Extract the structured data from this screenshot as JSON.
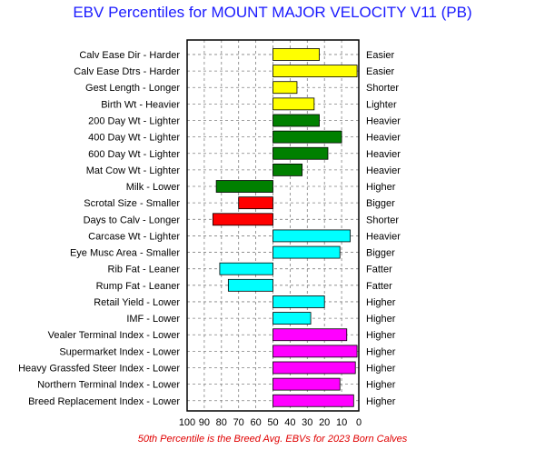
{
  "chart_data": {
    "type": "bar",
    "title": "EBV Percentiles for MOUNT MAJOR VELOCITY V11 (PB)",
    "footnote": "50th Percentile is the Breed Avg. EBVs for 2023 Born Calves",
    "xlim": [
      100,
      0
    ],
    "baseline": 50,
    "x_ticks": [
      "100",
      "90",
      "80",
      "70",
      "60",
      "50",
      "40",
      "30",
      "20",
      "10",
      "0"
    ],
    "grid": true,
    "colors": {
      "yellow": "#ffff00",
      "green": "#008000",
      "red": "#ff0000",
      "cyan": "#00ffff",
      "magenta": "#ff00ff"
    },
    "categories": [
      "Calv Ease Dir - Harder",
      "Calv Ease Dtrs - Harder",
      "Gest Length - Longer",
      "Birth Wt - Heavier",
      "200 Day Wt - Lighter",
      "400 Day Wt - Lighter",
      "600 Day Wt - Lighter",
      "Mat Cow Wt - Lighter",
      "Milk - Lower",
      "Scrotal Size - Smaller",
      "Days to Calv - Longer",
      "Carcase Wt - Lighter",
      "Eye Musc Area - Smaller",
      "Rib Fat - Leaner",
      "Rump Fat - Leaner",
      "Retail Yield - Lower",
      "IMF - Lower",
      "Vealer Terminal Index - Lower",
      "Supermarket Index - Lower",
      "Heavy Grassfed Steer Index - Lower",
      "Northern Terminal Index - Lower",
      "Breed Replacement Index - Lower"
    ],
    "right_labels": [
      "Easier",
      "Easier",
      "Shorter",
      "Lighter",
      "Heavier",
      "Heavier",
      "Heavier",
      "Heavier",
      "Higher",
      "Bigger",
      "Shorter",
      "Heavier",
      "Bigger",
      "Fatter",
      "Fatter",
      "Higher",
      "Higher",
      "Higher",
      "Higher",
      "Higher",
      "Higher",
      "Higher"
    ],
    "values": [
      23,
      1,
      36,
      26,
      23,
      10,
      18,
      33,
      83,
      70,
      85,
      5,
      11,
      81,
      76,
      20,
      28,
      7,
      1,
      2,
      11,
      3
    ],
    "bar_colors": [
      "yellow",
      "yellow",
      "yellow",
      "yellow",
      "green",
      "green",
      "green",
      "green",
      "green",
      "red",
      "red",
      "cyan",
      "cyan",
      "cyan",
      "cyan",
      "cyan",
      "cyan",
      "magenta",
      "magenta",
      "magenta",
      "magenta",
      "magenta"
    ]
  }
}
